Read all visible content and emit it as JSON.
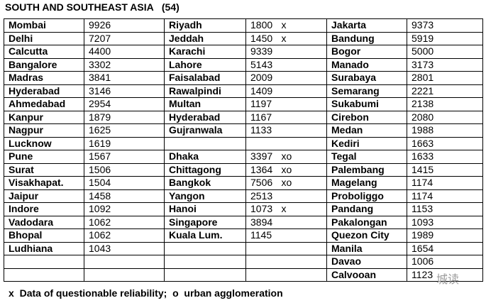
{
  "header": {
    "title": "SOUTH AND SOUTHEAST ASIA   (54)"
  },
  "table": {
    "rows": [
      [
        "Mombai",
        9926,
        "Riyadh",
        1800,
        "x",
        "Jakarta",
        9373
      ],
      [
        "Delhi",
        7207,
        "Jeddah",
        1450,
        "x",
        "Bandung",
        5919
      ],
      [
        "Calcutta",
        4400,
        "Karachi",
        9339,
        null,
        "Bogor",
        5000
      ],
      [
        "Bangalore",
        3302,
        "Lahore",
        5143,
        null,
        "Manado",
        3173
      ],
      [
        "Madras",
        3841,
        "Faisalabad",
        2009,
        null,
        "Surabaya",
        2801
      ],
      [
        "Hyderabad",
        3146,
        "Rawalpindi",
        1409,
        null,
        "Semarang",
        2221
      ],
      [
        "Ahmedabad",
        2954,
        "Multan",
        1197,
        null,
        "Sukabumi",
        2138
      ],
      [
        "Kanpur",
        1879,
        "Hyderabad",
        1167,
        null,
        "Cirebon",
        2080
      ],
      [
        "Nagpur",
        1625,
        "Gujranwala",
        1133,
        null,
        "Medan",
        1988
      ],
      [
        "Lucknow",
        1619,
        null,
        null,
        null,
        "Kediri",
        1663
      ],
      [
        "Pune",
        1567,
        "Dhaka",
        3397,
        "xo",
        "Tegal",
        1633
      ],
      [
        "Surat",
        1506,
        "Chittagong",
        1364,
        "xo",
        "Palembang",
        1415
      ],
      [
        "Visakhapat.",
        1504,
        "Bangkok",
        7506,
        "xo",
        "Magelang",
        1174
      ],
      [
        "Jaipur",
        1458,
        "Yangon",
        2513,
        null,
        "Proboliggo",
        1174
      ],
      [
        "Indore",
        1092,
        "Hanoi",
        1073,
        "x",
        "Pandang",
        1153
      ],
      [
        "Vadodara",
        1062,
        "Singapore",
        3894,
        null,
        "Pakalongan",
        1093
      ],
      [
        "Bhopal",
        1062,
        "Kuala Lum.",
        1145,
        null,
        "Quezon City",
        1989
      ],
      [
        "Ludhiana",
        1043,
        null,
        null,
        null,
        "Manila",
        1654
      ],
      [
        null,
        null,
        null,
        null,
        null,
        "Davao",
        1006
      ],
      [
        null,
        null,
        null,
        null,
        null,
        "Calvooan",
        1123
      ]
    ]
  },
  "footnote": {
    "x_mark": "x",
    "x_text": "Data of questionable reliability;",
    "o_mark": "o",
    "o_text": "urban agglomeration"
  },
  "watermark": "城读"
}
